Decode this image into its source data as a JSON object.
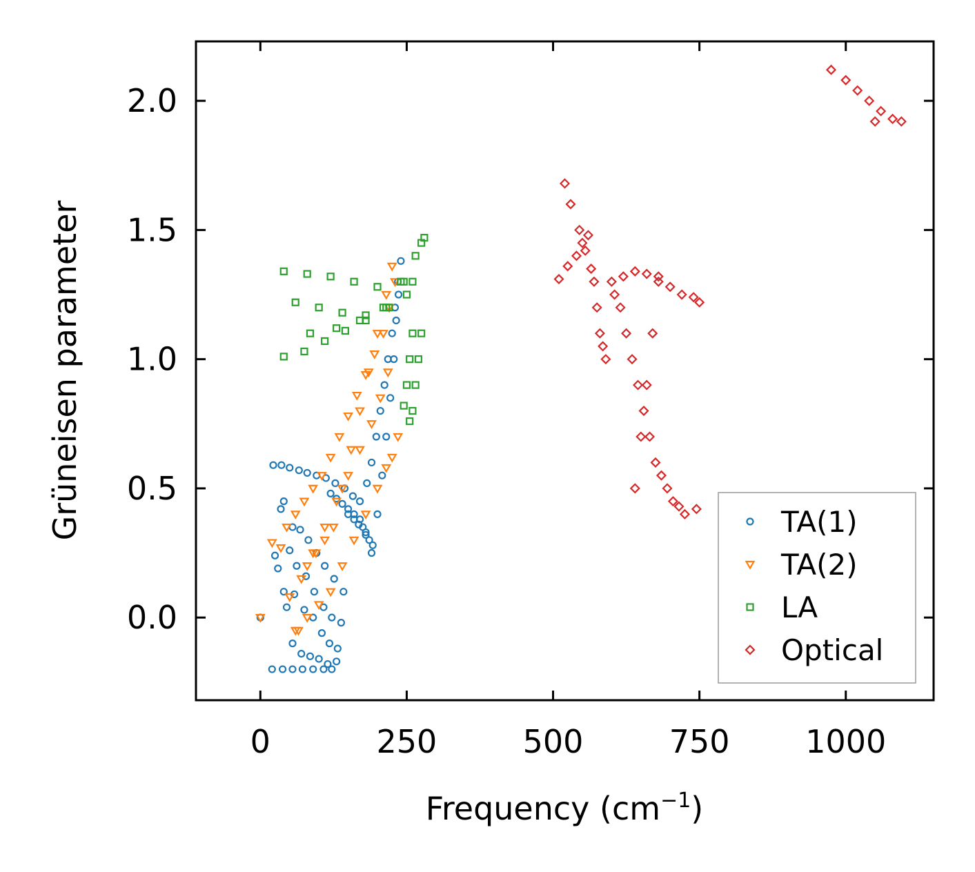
{
  "chart_data": {
    "type": "scatter",
    "title": "",
    "xlabel": "Frequency (cm",
    "xlabel_sup": "−1",
    "xlabel_close": ")",
    "ylabel": "Grüneisen parameter",
    "xlim": [
      -110,
      1150
    ],
    "ylim": [
      -0.32,
      2.23
    ],
    "xticks": [
      0,
      250,
      500,
      750,
      1000
    ],
    "yticks": [
      0.0,
      0.5,
      1.0,
      1.5,
      2.0
    ],
    "xtick_labels": [
      "0",
      "250",
      "500",
      "750",
      "1000"
    ],
    "ytick_labels": [
      "0.0",
      "0.5",
      "1.0",
      "1.5",
      "2.0"
    ],
    "legend_position": "lower-right",
    "colors": {
      "TA(1)": "#1f77b4",
      "TA(2)": "#ff7f0e",
      "LA": "#2ca02c",
      "Optical": "#d62728"
    },
    "series": [
      {
        "name": "TA(1)",
        "marker": "circle",
        "color": "#1f77b4",
        "x": [
          0,
          20,
          38,
          55,
          72,
          90,
          108,
          122,
          25,
          40,
          55,
          70,
          85,
          100,
          115,
          130,
          30,
          45,
          58,
          75,
          90,
          105,
          118,
          132,
          35,
          50,
          62,
          78,
          92,
          108,
          122,
          138,
          40,
          55,
          68,
          82,
          96,
          110,
          126,
          142,
          22,
          36,
          50,
          66,
          80,
          96,
          112,
          128,
          144,
          158,
          170,
          182,
          190,
          198,
          205,
          212,
          218,
          225,
          230,
          235,
          240,
          150,
          160,
          168,
          175,
          180,
          186,
          192,
          200,
          208,
          215,
          222,
          228,
          232,
          236,
          120,
          130,
          140,
          150,
          160,
          170,
          180,
          190
        ],
        "y": [
          0.0,
          -0.2,
          -0.2,
          -0.2,
          -0.2,
          -0.2,
          -0.2,
          -0.2,
          0.24,
          0.1,
          -0.1,
          -0.14,
          -0.15,
          -0.16,
          -0.18,
          -0.17,
          0.19,
          0.04,
          0.09,
          0.03,
          0.0,
          -0.06,
          -0.1,
          -0.12,
          0.42,
          0.26,
          0.2,
          0.16,
          0.1,
          0.04,
          0.0,
          -0.02,
          0.45,
          0.35,
          0.34,
          0.3,
          0.25,
          0.2,
          0.15,
          0.1,
          0.59,
          0.59,
          0.58,
          0.57,
          0.56,
          0.55,
          0.54,
          0.52,
          0.5,
          0.47,
          0.45,
          0.52,
          0.6,
          0.7,
          0.8,
          0.9,
          1.0,
          1.1,
          1.2,
          1.3,
          1.38,
          0.4,
          0.38,
          0.36,
          0.35,
          0.33,
          0.3,
          0.28,
          0.4,
          0.55,
          0.7,
          0.85,
          1.0,
          1.15,
          1.25,
          0.48,
          0.46,
          0.44,
          0.42,
          0.4,
          0.38,
          0.32,
          0.25
        ]
      },
      {
        "name": "TA(2)",
        "marker": "triangle-down",
        "color": "#ff7f0e",
        "x": [
          0,
          20,
          35,
          50,
          65,
          80,
          95,
          110,
          125,
          140,
          155,
          170,
          185,
          200,
          215,
          225,
          45,
          60,
          75,
          90,
          105,
          120,
          135,
          150,
          165,
          180,
          195,
          210,
          220,
          230,
          60,
          80,
          100,
          120,
          140,
          160,
          180,
          200,
          215,
          225,
          235,
          70,
          90,
          110,
          130,
          150,
          170,
          190,
          205,
          218
        ],
        "y": [
          0.0,
          0.29,
          0.27,
          0.08,
          -0.05,
          0.2,
          0.25,
          0.3,
          0.35,
          0.5,
          0.65,
          0.8,
          0.95,
          1.1,
          1.25,
          1.36,
          0.35,
          0.4,
          0.45,
          0.5,
          0.55,
          0.62,
          0.7,
          0.78,
          0.86,
          0.94,
          1.02,
          1.1,
          1.2,
          1.3,
          -0.05,
          0.0,
          0.05,
          0.1,
          0.2,
          0.3,
          0.4,
          0.5,
          0.58,
          0.62,
          0.7,
          0.15,
          0.25,
          0.35,
          0.45,
          0.55,
          0.65,
          0.75,
          0.85,
          0.95
        ]
      },
      {
        "name": "LA",
        "marker": "square",
        "color": "#2ca02c",
        "x": [
          40,
          80,
          120,
          160,
          200,
          240,
          280,
          60,
          100,
          140,
          180,
          220,
          260,
          40,
          75,
          110,
          145,
          180,
          215,
          250,
          265,
          255,
          260,
          265,
          270,
          275,
          245,
          250,
          255,
          260,
          85,
          130,
          170,
          210,
          245,
          275
        ],
        "y": [
          1.34,
          1.33,
          1.32,
          1.3,
          1.28,
          1.3,
          1.47,
          1.22,
          1.2,
          1.18,
          1.17,
          1.2,
          1.3,
          1.01,
          1.03,
          1.07,
          1.11,
          1.15,
          1.2,
          1.25,
          1.4,
          0.76,
          0.8,
          0.9,
          1.0,
          1.1,
          0.82,
          0.9,
          1.0,
          1.1,
          1.1,
          1.12,
          1.15,
          1.2,
          1.3,
          1.45
        ]
      },
      {
        "name": "Optical",
        "marker": "diamond",
        "color": "#d62728",
        "x": [
          975,
          1000,
          1020,
          1040,
          1060,
          1080,
          1095,
          1050,
          510,
          525,
          540,
          550,
          560,
          570,
          580,
          590,
          520,
          530,
          545,
          555,
          565,
          575,
          585,
          600,
          620,
          640,
          660,
          680,
          700,
          720,
          740,
          750,
          605,
          625,
          645,
          665,
          685,
          705,
          725,
          745,
          615,
          635,
          655,
          675,
          695,
          715,
          640,
          650,
          660,
          670,
          680
        ],
        "y": [
          2.12,
          2.08,
          2.04,
          2.0,
          1.96,
          1.93,
          1.92,
          1.92,
          1.31,
          1.36,
          1.4,
          1.45,
          1.48,
          1.3,
          1.1,
          1.0,
          1.68,
          1.6,
          1.5,
          1.42,
          1.35,
          1.2,
          1.05,
          1.3,
          1.32,
          1.34,
          1.33,
          1.32,
          1.28,
          1.25,
          1.24,
          1.22,
          1.25,
          1.1,
          0.9,
          0.7,
          0.55,
          0.45,
          0.4,
          0.42,
          1.2,
          1.0,
          0.8,
          0.6,
          0.5,
          0.43,
          0.5,
          0.7,
          0.9,
          1.1,
          1.3
        ]
      }
    ]
  }
}
